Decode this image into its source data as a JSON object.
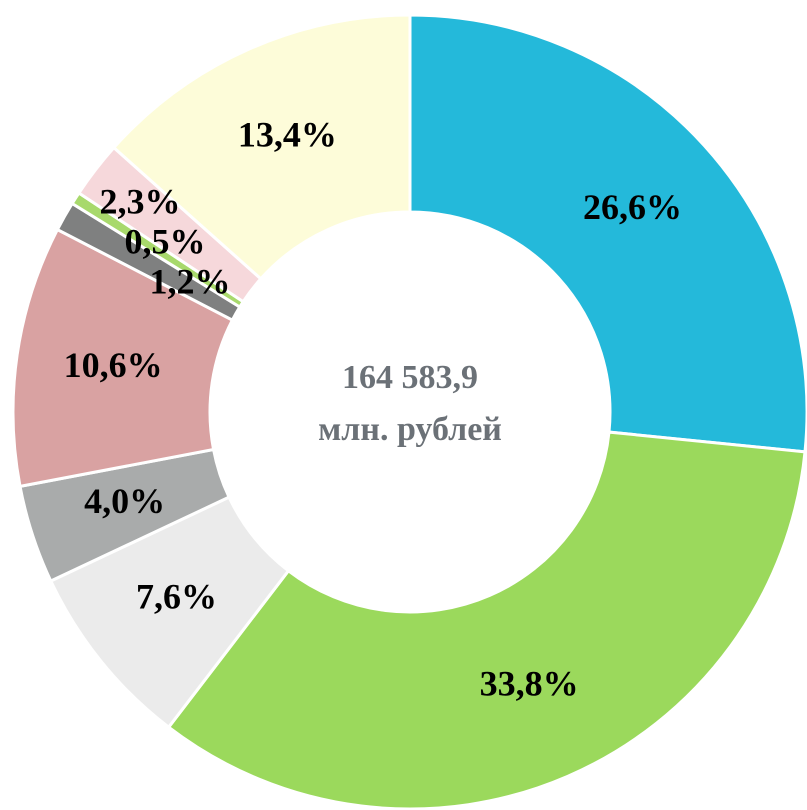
{
  "chart_data": {
    "type": "donut",
    "values": [
      26.6,
      33.8,
      7.6,
      4.0,
      10.6,
      1.2,
      0.5,
      2.3,
      13.4
    ],
    "value_labels": [
      "26,6%",
      "33,8%",
      "7,6%",
      "4,0%",
      "10,6%",
      "1,2%",
      "0,5%",
      "2,3%",
      "13,4%"
    ],
    "colors": [
      "#24b9da",
      "#9bd95c",
      "#ebebeb",
      "#a9abab",
      "#d9a2a2",
      "#7f8080",
      "#a8d96c",
      "#f6d8db",
      "#fdfcd9"
    ],
    "center_label": [
      "164 583,9",
      "млн. рублей"
    ]
  }
}
